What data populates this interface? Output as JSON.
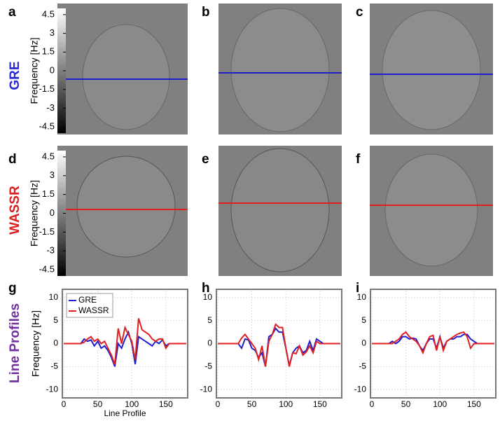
{
  "panels": [
    "a",
    "b",
    "c",
    "d",
    "e",
    "f",
    "g",
    "h",
    "i"
  ],
  "rows": {
    "gre": "GRE",
    "wassr": "WASSR",
    "profiles": "Line Profiles"
  },
  "colorbars": [
    {
      "label": "Frequency [Hz]",
      "lim": [
        -5,
        5
      ],
      "ticks": [
        4.5,
        3,
        1.5,
        0,
        -1.5,
        -3,
        -4.5
      ]
    },
    {
      "label": "Frequency [Hz]",
      "lim": [
        -5,
        5
      ],
      "ticks": [
        4.5,
        3,
        1.5,
        0,
        -1.5,
        -3,
        -4.5
      ]
    }
  ],
  "chart_data": [
    {
      "type": "line",
      "ylabel": "Frequency [Hz]",
      "xlabel": "Line Profile",
      "legend": "upper left",
      "grid": true,
      "x": [
        0,
        5,
        10,
        15,
        20,
        25,
        30,
        35,
        40,
        45,
        50,
        55,
        60,
        65,
        70,
        75,
        80,
        85,
        90,
        95,
        100,
        105,
        110,
        115,
        120,
        125,
        130,
        135,
        140,
        145,
        150,
        155,
        160,
        165,
        170,
        175,
        180
      ],
      "xlim": [
        0,
        180
      ],
      "xticks": [
        0,
        50,
        100,
        150
      ],
      "ylim": [
        -11.5,
        11.5
      ],
      "yticks": [
        -10,
        -5,
        0,
        5,
        10
      ],
      "series": [
        {
          "name": "GRE",
          "color": "#1f1fd0",
          "values": [
            0,
            0,
            0,
            0,
            0,
            0,
            1,
            0.5,
            0.8,
            -0.5,
            0.5,
            -1,
            -0.5,
            -1.5,
            -3,
            -5,
            0,
            -1,
            1,
            2.5,
            0,
            -4.5,
            1.5,
            1,
            0.5,
            0,
            -0.5,
            0.5,
            0,
            0.8,
            -0.5,
            0,
            0,
            0,
            0,
            0,
            0
          ]
        },
        {
          "name": "WASSR",
          "color": "#e02020",
          "values": [
            0,
            0,
            0,
            0,
            0,
            0,
            0.3,
            1,
            1.5,
            0.5,
            1,
            0,
            0.5,
            -1,
            -2.5,
            -4.5,
            3.3,
            0,
            3.5,
            2,
            0.5,
            -3.5,
            5.5,
            3,
            2.5,
            2,
            1,
            0.5,
            1,
            1,
            -1,
            0,
            0,
            0,
            0,
            0,
            0
          ]
        }
      ]
    },
    {
      "type": "line",
      "grid": true,
      "x": [
        0,
        5,
        10,
        15,
        20,
        25,
        30,
        35,
        40,
        45,
        50,
        55,
        60,
        65,
        70,
        75,
        80,
        85,
        90,
        95,
        100,
        105,
        110,
        115,
        120,
        125,
        130,
        135,
        140,
        145,
        150,
        155,
        160,
        165,
        170,
        175,
        180
      ],
      "xlim": [
        0,
        180
      ],
      "xticks": [
        0,
        50,
        100,
        150
      ],
      "ylim": [
        -11.5,
        11.5
      ],
      "yticks": [
        -10,
        -5,
        0,
        5,
        10
      ],
      "series": [
        {
          "name": "GRE",
          "color": "#1f1fd0",
          "values": [
            0,
            0,
            0,
            0,
            0,
            0,
            0,
            -1,
            1,
            0.8,
            -1,
            -1.5,
            -3,
            -2,
            -5,
            1.5,
            2,
            3.3,
            2.5,
            2.5,
            -1,
            -4.8,
            -2,
            -1,
            -0.5,
            -2,
            -1.5,
            0.5,
            -1.5,
            1,
            0.5,
            0,
            0,
            0,
            0,
            0,
            0
          ]
        },
        {
          "name": "WASSR",
          "color": "#e02020",
          "values": [
            0,
            0,
            0,
            0,
            0,
            0,
            0,
            1.2,
            2,
            1,
            0,
            -1,
            -3.5,
            -0.5,
            -5,
            0.5,
            2,
            4.2,
            3.5,
            3.5,
            -1,
            -5,
            -2,
            -2.2,
            -0.5,
            -2.5,
            -1.8,
            -0.5,
            -2,
            0.5,
            0,
            0,
            0,
            0,
            0,
            0,
            0
          ]
        }
      ]
    },
    {
      "type": "line",
      "grid": true,
      "x": [
        0,
        5,
        10,
        15,
        20,
        25,
        30,
        35,
        40,
        45,
        50,
        55,
        60,
        65,
        70,
        75,
        80,
        85,
        90,
        95,
        100,
        105,
        110,
        115,
        120,
        125,
        130,
        135,
        140,
        145,
        150,
        155,
        160,
        165,
        170,
        175,
        180
      ],
      "xlim": [
        0,
        180
      ],
      "xticks": [
        0,
        50,
        100,
        150
      ],
      "ylim": [
        -11.5,
        11.5
      ],
      "yticks": [
        -10,
        -5,
        0,
        5,
        10
      ],
      "series": [
        {
          "name": "GRE",
          "color": "#1f1fd0",
          "values": [
            0,
            0,
            0,
            0,
            0,
            0,
            0.5,
            0,
            0.5,
            1.5,
            1.5,
            1,
            1.2,
            1,
            -0.5,
            -1.5,
            0,
            1,
            1,
            -1,
            1.5,
            -1,
            0.5,
            1,
            1,
            1.5,
            1.5,
            2,
            2,
            1,
            0.5,
            0,
            0,
            0,
            0,
            0,
            0
          ]
        },
        {
          "name": "WASSR",
          "color": "#e02020",
          "values": [
            0,
            0,
            0,
            0,
            0,
            0,
            0,
            0.5,
            1,
            2,
            2.5,
            1.5,
            1,
            0.5,
            -0.5,
            -2,
            0,
            1.5,
            1.8,
            -1.5,
            1.5,
            -1.5,
            0.5,
            1,
            1.5,
            2,
            2.3,
            2.5,
            1.5,
            -1,
            0,
            0,
            0,
            0,
            0,
            0,
            0
          ]
        }
      ]
    }
  ]
}
